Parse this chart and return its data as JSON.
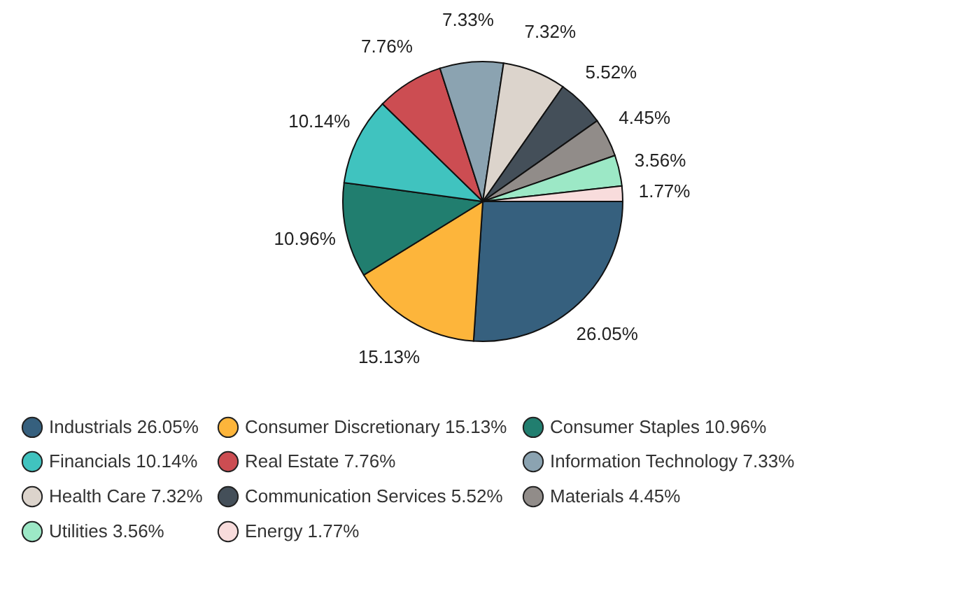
{
  "chart_data": {
    "type": "pie",
    "categories": [
      "Industrials",
      "Consumer Discretionary",
      "Consumer Staples",
      "Financials",
      "Real Estate",
      "Information Technology",
      "Health Care",
      "Communication Services",
      "Materials",
      "Utilities",
      "Energy"
    ],
    "values": [
      26.05,
      15.13,
      10.96,
      10.14,
      7.76,
      7.33,
      7.32,
      5.52,
      4.45,
      3.56,
      1.77
    ],
    "value_labels": [
      "26.05%",
      "15.13%",
      "10.96%",
      "10.14%",
      "7.76%",
      "7.33%",
      "7.32%",
      "5.52%",
      "4.45%",
      "3.56%",
      "1.77%"
    ],
    "colors": [
      "#36607e",
      "#fdb53b",
      "#217e6f",
      "#40c3bf",
      "#cc4d52",
      "#8ba3b1",
      "#dcd4cc",
      "#444f59",
      "#918c89",
      "#9ce8c6",
      "#f8dcdc"
    ],
    "legend": "bottom"
  }
}
